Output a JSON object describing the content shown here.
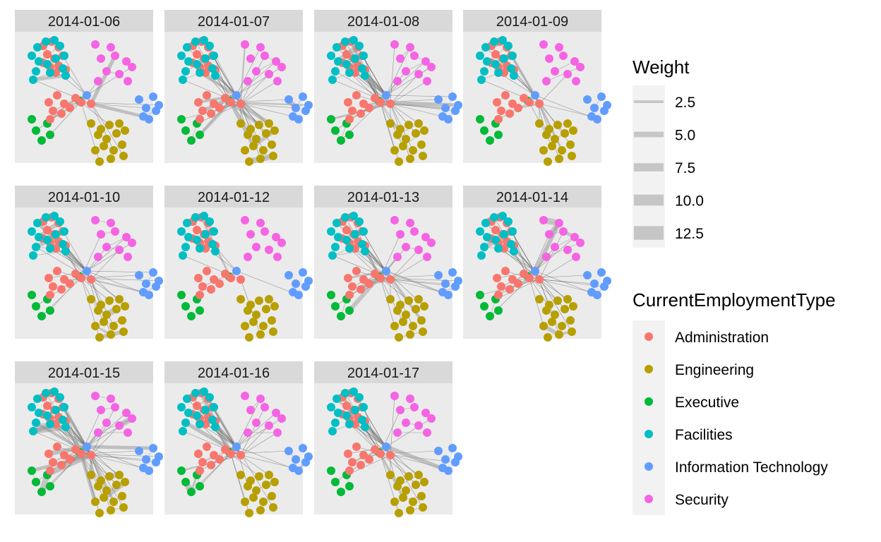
{
  "chart_data": {
    "type": "network-facets",
    "facets": [
      "2014-01-06",
      "2014-01-07",
      "2014-01-08",
      "2014-01-09",
      "2014-01-10",
      "2014-01-12",
      "2014-01-13",
      "2014-01-14",
      "2014-01-15",
      "2014-01-16",
      "2014-01-17"
    ],
    "legends": {
      "weight": {
        "title": "Weight",
        "breaks": [
          2.5,
          5.0,
          7.5,
          10.0,
          12.5
        ],
        "labels": [
          "2.5",
          "5.0",
          "7.5",
          "10.0",
          "12.5"
        ]
      },
      "type": {
        "title": "CurrentEmploymentType",
        "categories": [
          "Administration",
          "Engineering",
          "Executive",
          "Facilities",
          "Information Technology",
          "Security"
        ],
        "colors": [
          "#F8766D",
          "#B79F00",
          "#00BA38",
          "#00BFC4",
          "#619CFF",
          "#F564E3"
        ]
      }
    },
    "legend_position": "right",
    "edge_density": [
      0.35,
      0.6,
      0.75,
      0.4,
      0.55,
      0.08,
      0.6,
      0.65,
      0.9,
      0.5,
      0.45
    ]
  }
}
